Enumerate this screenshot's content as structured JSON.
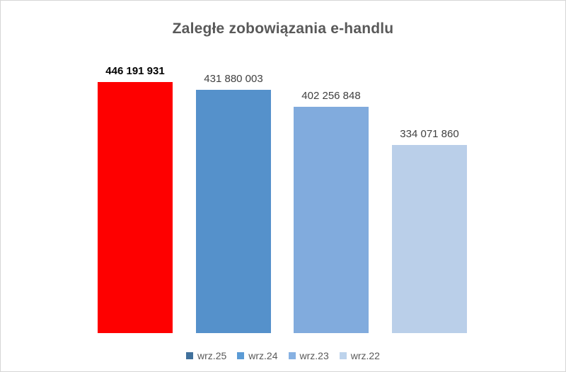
{
  "chart_data": {
    "type": "bar",
    "title": "Zaległe zobowiązania e-handlu",
    "categories": [
      "wrz.25",
      "wrz.24",
      "wrz.23",
      "wrz.22"
    ],
    "values": [
      446191931,
      431880003,
      402256848,
      334071860
    ],
    "value_labels": [
      "446 191 931",
      "431 880 003",
      "402 256 848",
      "334 071 860"
    ],
    "bar_colors": [
      "#FE0000",
      "#5591CB",
      "#81ABDD",
      "#BACFE9"
    ],
    "highlighted_index": 0,
    "legend": [
      {
        "label": "wrz.25",
        "color": "#41719C"
      },
      {
        "label": "wrz.24",
        "color": "#5B9BD5"
      },
      {
        "label": "wrz.23",
        "color": "#87B1E2"
      },
      {
        "label": "wrz.22",
        "color": "#BDD3EC"
      }
    ],
    "legend_position": "bottom",
    "xlabel": "",
    "ylabel": "",
    "ylim": [
      0,
      446191931
    ],
    "grid": false,
    "axes_visible": false,
    "colors": {
      "title": "#595959",
      "label": "#404040",
      "label_highlight": "#000000",
      "legend_text": "#595959",
      "background": "#FFFFFF",
      "border": "#D6D6D6"
    }
  }
}
